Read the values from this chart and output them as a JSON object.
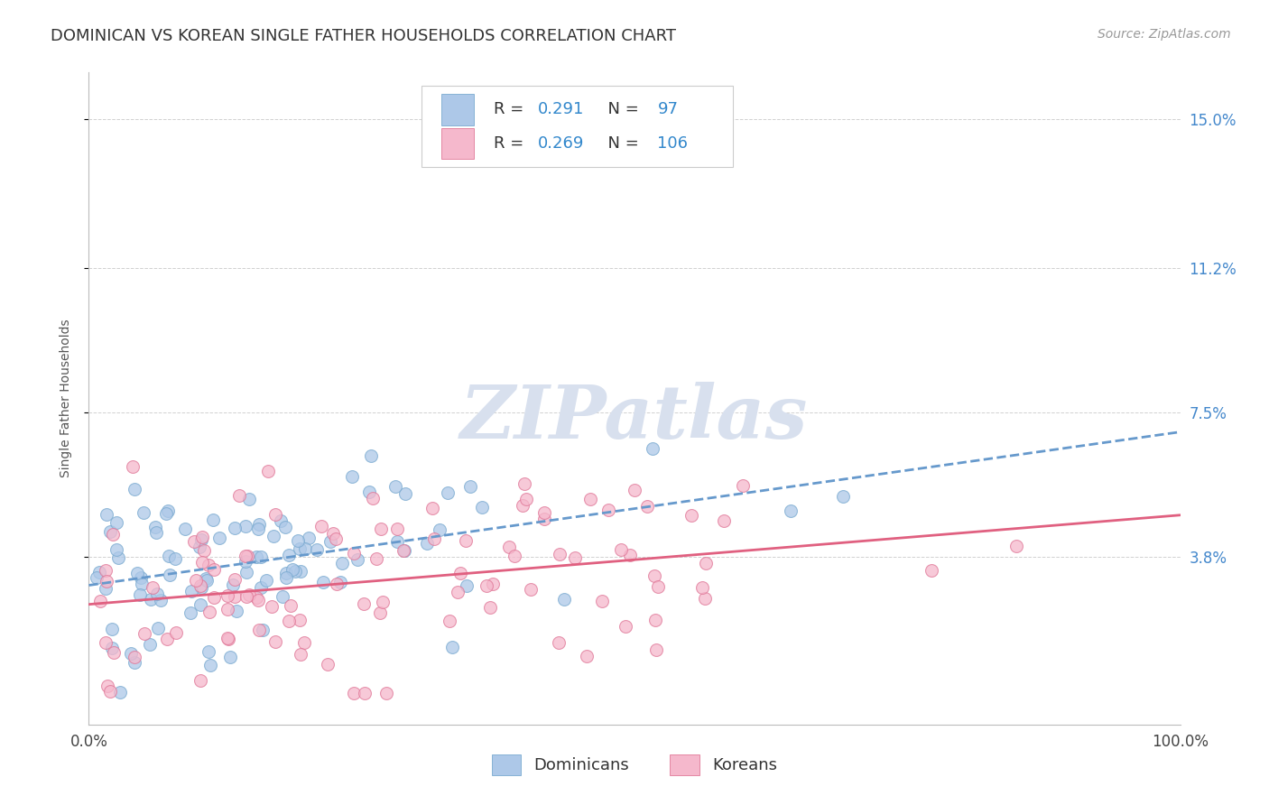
{
  "title": "DOMINICAN VS KOREAN SINGLE FATHER HOUSEHOLDS CORRELATION CHART",
  "source": "Source: ZipAtlas.com",
  "ylabel": "Single Father Households",
  "ytick_labels": [
    "3.8%",
    "7.5%",
    "11.2%",
    "15.0%"
  ],
  "ytick_vals": [
    0.038,
    0.075,
    0.112,
    0.15
  ],
  "xtick_labels": [
    "0.0%",
    "100.0%"
  ],
  "xtick_vals": [
    0.0,
    1.0
  ],
  "dominican_color": "#adc8e8",
  "dominican_edge_color": "#7aaad0",
  "korean_color": "#f5b8cc",
  "korean_edge_color": "#e07898",
  "trendline_dominican_color": "#6699cc",
  "trendline_dominican_style": "--",
  "trendline_korean_color": "#e06080",
  "trendline_korean_style": "-",
  "background_color": "#ffffff",
  "grid_color": "#cccccc",
  "watermark_text": "ZIPatlas",
  "watermark_color": "#d8e0ee",
  "title_fontsize": 13,
  "axis_label_fontsize": 10,
  "tick_fontsize": 12,
  "legend_fontsize": 13,
  "source_fontsize": 10,
  "xmin": 0.0,
  "xmax": 1.0,
  "ymin": -0.005,
  "ymax": 0.162,
  "dominican_R": 0.291,
  "dominican_N": 97,
  "korean_R": 0.269,
  "korean_N": 106,
  "scatter_size": 100,
  "scatter_alpha": 0.75,
  "trendline_lw": 2.0,
  "legend_R_dark": "#333333",
  "legend_val_color": "#3388cc",
  "right_tick_color": "#4488cc"
}
